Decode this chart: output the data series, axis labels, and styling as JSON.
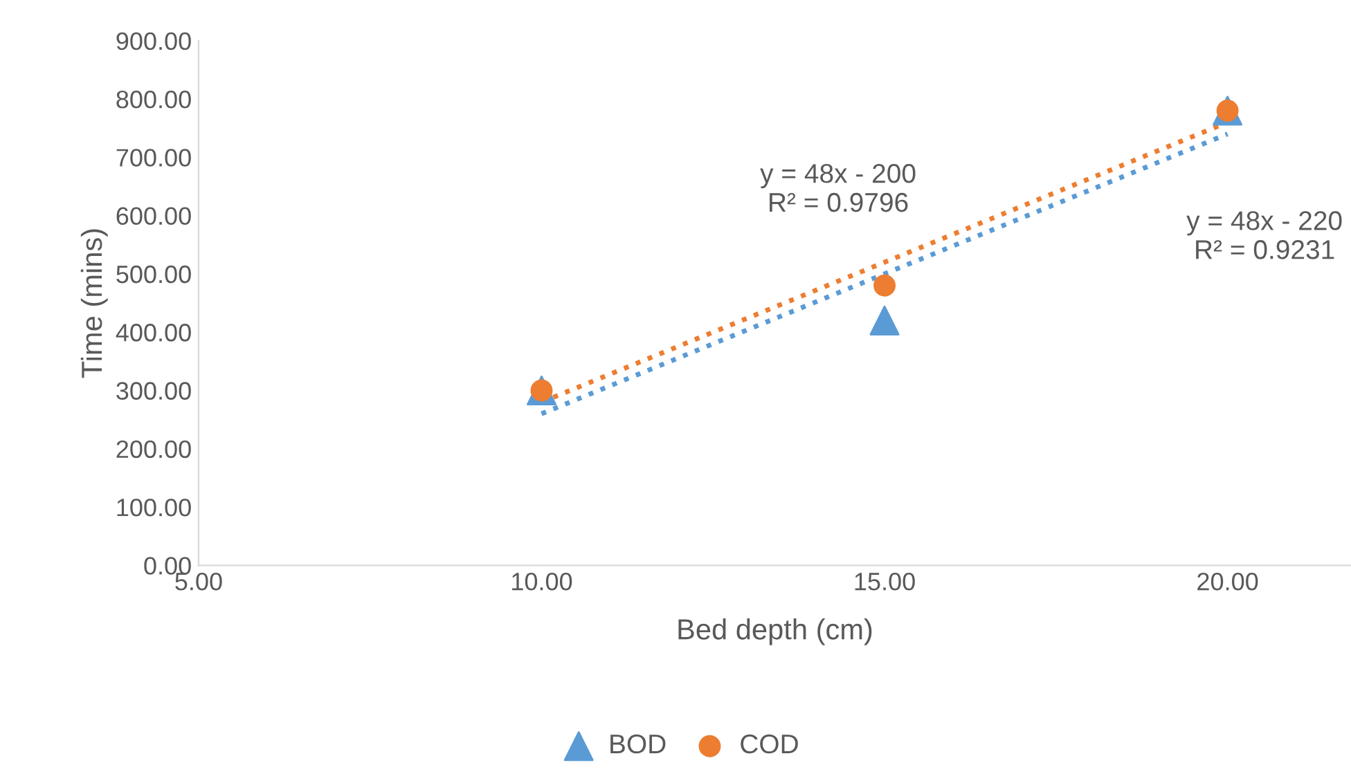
{
  "chart_data": {
    "type": "scatter",
    "xlabel": "Bed depth (cm)",
    "ylabel": "Time (mins)",
    "xlim": [
      5,
      21.8
    ],
    "ylim": [
      0,
      900
    ],
    "xticks": [
      {
        "value": 5,
        "label": "5.00"
      },
      {
        "value": 10,
        "label": "10.00"
      },
      {
        "value": 15,
        "label": "15.00"
      },
      {
        "value": 20,
        "label": "20.00"
      }
    ],
    "yticks": [
      {
        "value": 0,
        "label": "0.00"
      },
      {
        "value": 100,
        "label": "100.00"
      },
      {
        "value": 200,
        "label": "200.00"
      },
      {
        "value": 300,
        "label": "300.00"
      },
      {
        "value": 400,
        "label": "400.00"
      },
      {
        "value": 500,
        "label": "500.00"
      },
      {
        "value": 600,
        "label": "600.00"
      },
      {
        "value": 700,
        "label": "700.00"
      },
      {
        "value": 800,
        "label": "800.00"
      },
      {
        "value": 900,
        "label": "900.00"
      }
    ],
    "grid": false,
    "legend": "bottom",
    "series": [
      {
        "type": "line",
        "color": "#5b9bd5",
        "x": [
          10,
          20
        ],
        "values": [
          260,
          740
        ],
        "line_style": "dotted",
        "marker": "none"
      },
      {
        "type": "line",
        "color": "#ed7d31",
        "x": [
          10,
          20
        ],
        "values": [
          280,
          760
        ],
        "line_style": "dotted",
        "marker": "none"
      },
      {
        "name": "BOD",
        "color": "#5b9bd5",
        "x": [
          10,
          15,
          20
        ],
        "values": [
          300,
          420,
          780
        ],
        "marker": "triangle"
      },
      {
        "name": "COD",
        "color": "#ed7d31",
        "x": [
          10,
          15,
          20
        ],
        "values": [
          300,
          480,
          780
        ],
        "marker": "circle"
      }
    ],
    "annotations": [
      "y = 48x - 200\nR² = 0.9796",
      "y = 48x - 220\nR² = 0.9231"
    ]
  }
}
